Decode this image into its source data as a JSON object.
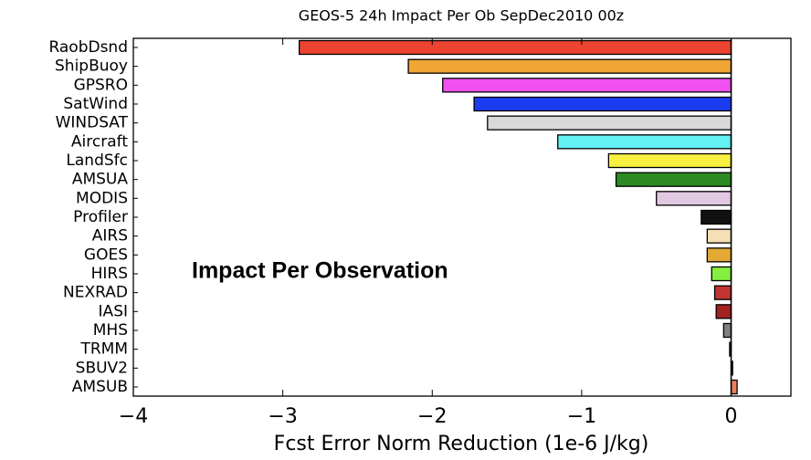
{
  "chart_data": {
    "type": "barh",
    "title": "GEOS-5 24h Impact Per Ob SepDec2010 00z",
    "xlabel": "Fcst Error Norm Reduction (1e-6 J/kg)",
    "annotation": "Impact Per Observation",
    "categories": [
      "RaobDsnd",
      "ShipBuoy",
      "GPSRO",
      "SatWind",
      "WINDSAT",
      "Aircraft",
      "LandSfc",
      "AMSUA",
      "MODIS",
      "Profiler",
      "AIRS",
      "GOES",
      "HIRS",
      "NEXRAD",
      "IASI",
      "MHS",
      "TRMM",
      "SBUV2",
      "AMSUB"
    ],
    "values": [
      -2.89,
      -2.16,
      -1.93,
      -1.72,
      -1.63,
      -1.16,
      -0.82,
      -0.77,
      -0.5,
      -0.2,
      -0.16,
      -0.16,
      -0.13,
      -0.11,
      -0.1,
      -0.05,
      -0.01,
      0.01,
      0.04
    ],
    "colors": [
      "#ec4430",
      "#f0a535",
      "#f050f0",
      "#1c3cf2",
      "#d9d9d9",
      "#62f2f2",
      "#f8f040",
      "#2d8a22",
      "#e2c9e2",
      "#111111",
      "#f5dfb5",
      "#e2aa35",
      "#84f040",
      "#c03532",
      "#a32222",
      "#808080",
      "#222222",
      "#222222",
      "#e8805e"
    ],
    "xlim": [
      -4,
      0.4
    ],
    "xticks": [
      {
        "value": -4,
        "label": "−4"
      },
      {
        "value": -3,
        "label": "−3"
      },
      {
        "value": -2,
        "label": "−2"
      },
      {
        "value": -1,
        "label": "−1"
      },
      0
    ]
  }
}
